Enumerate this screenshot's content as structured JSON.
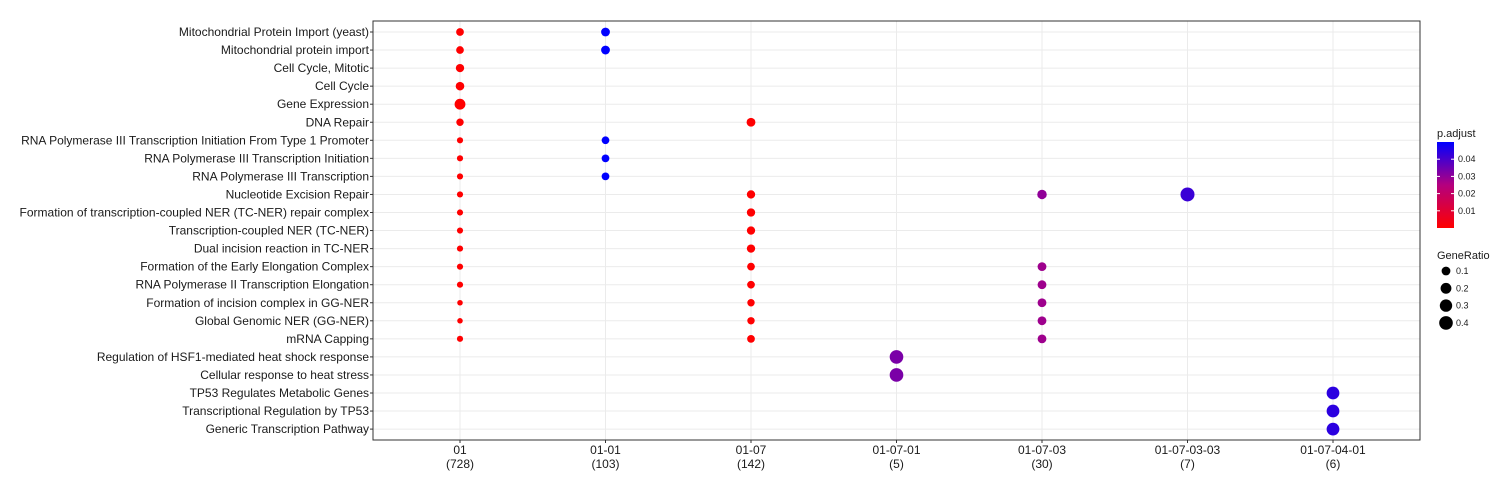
{
  "chart_data": {
    "type": "scatter",
    "title": "",
    "xlabel": "",
    "ylabel": "",
    "grid": true,
    "legend_placement": "right",
    "x_categories": [
      {
        "label": "01",
        "count": "(728)"
      },
      {
        "label": "01-01",
        "count": "(103)"
      },
      {
        "label": "01-07",
        "count": "(142)"
      },
      {
        "label": "01-07-01",
        "count": "(5)"
      },
      {
        "label": "01-07-03",
        "count": "(30)"
      },
      {
        "label": "01-07-03-03",
        "count": "(7)"
      },
      {
        "label": "01-07-04-01",
        "count": "(6)"
      }
    ],
    "y_categories": [
      "Mitochondrial Protein Import (yeast)",
      "Mitochondrial protein import",
      "Cell Cycle, Mitotic",
      "Cell Cycle",
      "Gene Expression",
      "DNA Repair",
      "RNA Polymerase III Transcription Initiation From Type 1 Promoter",
      "RNA Polymerase III Transcription Initiation",
      "RNA Polymerase III Transcription",
      "Nucleotide Excision Repair",
      "Formation of transcription-coupled NER (TC-NER) repair complex",
      "Transcription-coupled NER (TC-NER)",
      "Dual incision reaction in TC-NER",
      "Formation of the Early Elongation Complex",
      "RNA Polymerase II Transcription Elongation",
      "Formation of incision complex in GG-NER",
      "Global Genomic NER (GG-NER)",
      "mRNA Capping",
      "Regulation of HSF1-mediated heat shock response",
      "Cellular response to heat stress",
      "TP53 Regulates Metabolic Genes",
      "Transcriptional Regulation by TP53",
      "Generic Transcription Pathway"
    ],
    "points": [
      {
        "x": "01",
        "y": "Mitochondrial Protein Import (yeast)",
        "gene_ratio": 0.06,
        "p_adjust": 0.0001
      },
      {
        "x": "01",
        "y": "Mitochondrial protein import",
        "gene_ratio": 0.06,
        "p_adjust": 0.0001
      },
      {
        "x": "01",
        "y": "Cell Cycle, Mitotic",
        "gene_ratio": 0.08,
        "p_adjust": 0.0001
      },
      {
        "x": "01",
        "y": "Cell Cycle",
        "gene_ratio": 0.09,
        "p_adjust": 0.0001
      },
      {
        "x": "01",
        "y": "Gene Expression",
        "gene_ratio": 0.2,
        "p_adjust": 0.0001
      },
      {
        "x": "01",
        "y": "DNA Repair",
        "gene_ratio": 0.05,
        "p_adjust": 0.0001
      },
      {
        "x": "01",
        "y": "RNA Polymerase III Transcription Initiation From Type 1 Promoter",
        "gene_ratio": 0.02,
        "p_adjust": 0.0001
      },
      {
        "x": "01",
        "y": "RNA Polymerase III Transcription Initiation",
        "gene_ratio": 0.02,
        "p_adjust": 0.0001
      },
      {
        "x": "01",
        "y": "RNA Polymerase III Transcription",
        "gene_ratio": 0.02,
        "p_adjust": 0.0001
      },
      {
        "x": "01",
        "y": "Nucleotide Excision Repair",
        "gene_ratio": 0.02,
        "p_adjust": 0.0001
      },
      {
        "x": "01",
        "y": "Formation of transcription-coupled NER (TC-NER) repair complex",
        "gene_ratio": 0.02,
        "p_adjust": 0.0001
      },
      {
        "x": "01",
        "y": "Transcription-coupled NER (TC-NER)",
        "gene_ratio": 0.02,
        "p_adjust": 0.0001
      },
      {
        "x": "01",
        "y": "Dual incision reaction in TC-NER",
        "gene_ratio": 0.02,
        "p_adjust": 0.0001
      },
      {
        "x": "01",
        "y": "Formation of the Early Elongation Complex",
        "gene_ratio": 0.02,
        "p_adjust": 0.0001
      },
      {
        "x": "01",
        "y": "RNA Polymerase II Transcription Elongation",
        "gene_ratio": 0.02,
        "p_adjust": 0.0001
      },
      {
        "x": "01",
        "y": "Formation of incision complex in GG-NER",
        "gene_ratio": 0.01,
        "p_adjust": 0.0001
      },
      {
        "x": "01",
        "y": "Global Genomic NER (GG-NER)",
        "gene_ratio": 0.01,
        "p_adjust": 0.0001
      },
      {
        "x": "01",
        "y": "mRNA Capping",
        "gene_ratio": 0.02,
        "p_adjust": 0.0001
      },
      {
        "x": "01-01",
        "y": "Mitochondrial Protein Import (yeast)",
        "gene_ratio": 0.1,
        "p_adjust": 0.05
      },
      {
        "x": "01-01",
        "y": "Mitochondrial protein import",
        "gene_ratio": 0.1,
        "p_adjust": 0.05
      },
      {
        "x": "01-01",
        "y": "RNA Polymerase III Transcription Initiation From Type 1 Promoter",
        "gene_ratio": 0.06,
        "p_adjust": 0.05
      },
      {
        "x": "01-01",
        "y": "RNA Polymerase III Transcription Initiation",
        "gene_ratio": 0.06,
        "p_adjust": 0.05
      },
      {
        "x": "01-01",
        "y": "RNA Polymerase III Transcription",
        "gene_ratio": 0.06,
        "p_adjust": 0.05
      },
      {
        "x": "01-07",
        "y": "DNA Repair",
        "gene_ratio": 0.1,
        "p_adjust": 0.0001
      },
      {
        "x": "01-07",
        "y": "Nucleotide Excision Repair",
        "gene_ratio": 0.08,
        "p_adjust": 0.0001
      },
      {
        "x": "01-07",
        "y": "Formation of transcription-coupled NER (TC-NER) repair complex",
        "gene_ratio": 0.08,
        "p_adjust": 0.0001
      },
      {
        "x": "01-07",
        "y": "Transcription-coupled NER (TC-NER)",
        "gene_ratio": 0.08,
        "p_adjust": 0.0001
      },
      {
        "x": "01-07",
        "y": "Dual incision reaction in TC-NER",
        "gene_ratio": 0.08,
        "p_adjust": 0.0001
      },
      {
        "x": "01-07",
        "y": "Formation of the Early Elongation Complex",
        "gene_ratio": 0.06,
        "p_adjust": 0.0001
      },
      {
        "x": "01-07",
        "y": "RNA Polymerase II Transcription Elongation",
        "gene_ratio": 0.06,
        "p_adjust": 0.0001
      },
      {
        "x": "01-07",
        "y": "Formation of incision complex in GG-NER",
        "gene_ratio": 0.05,
        "p_adjust": 0.0001
      },
      {
        "x": "01-07",
        "y": "Global Genomic NER (GG-NER)",
        "gene_ratio": 0.05,
        "p_adjust": 0.0001
      },
      {
        "x": "01-07",
        "y": "mRNA Capping",
        "gene_ratio": 0.06,
        "p_adjust": 0.0001
      },
      {
        "x": "01-07-01",
        "y": "Regulation of HSF1-mediated heat shock response",
        "gene_ratio": 0.4,
        "p_adjust": 0.033
      },
      {
        "x": "01-07-01",
        "y": "Cellular response to heat stress",
        "gene_ratio": 0.4,
        "p_adjust": 0.033
      },
      {
        "x": "01-07-03",
        "y": "Nucleotide Excision Repair",
        "gene_ratio": 0.13,
        "p_adjust": 0.03
      },
      {
        "x": "01-07-03",
        "y": "Formation of the Early Elongation Complex",
        "gene_ratio": 0.1,
        "p_adjust": 0.028
      },
      {
        "x": "01-07-03",
        "y": "RNA Polymerase II Transcription Elongation",
        "gene_ratio": 0.1,
        "p_adjust": 0.028
      },
      {
        "x": "01-07-03",
        "y": "Formation of incision complex in GG-NER",
        "gene_ratio": 0.1,
        "p_adjust": 0.028
      },
      {
        "x": "01-07-03",
        "y": "Global Genomic NER (GG-NER)",
        "gene_ratio": 0.1,
        "p_adjust": 0.028
      },
      {
        "x": "01-07-03",
        "y": "mRNA Capping",
        "gene_ratio": 0.1,
        "p_adjust": 0.028
      },
      {
        "x": "01-07-03-03",
        "y": "Nucleotide Excision Repair",
        "gene_ratio": 0.43,
        "p_adjust": 0.042
      },
      {
        "x": "01-07-04-01",
        "y": "TP53 Regulates Metabolic Genes",
        "gene_ratio": 0.33,
        "p_adjust": 0.044
      },
      {
        "x": "01-07-04-01",
        "y": "Transcriptional Regulation by TP53",
        "gene_ratio": 0.33,
        "p_adjust": 0.044
      },
      {
        "x": "01-07-04-01",
        "y": "Generic Transcription Pathway",
        "gene_ratio": 0.33,
        "p_adjust": 0.044
      }
    ],
    "legend_color": {
      "title": "p.adjust",
      "ticks": [
        "0.01",
        "0.02",
        "0.03",
        "0.04"
      ],
      "tick_values": [
        0.01,
        0.02,
        0.03,
        0.04
      ],
      "range": [
        0.0,
        0.05
      ],
      "low_color": "#ff0000",
      "high_color": "#0000ff"
    },
    "legend_size": {
      "title": "GeneRatio",
      "ticks": [
        "0.1",
        "0.2",
        "0.3",
        "0.4"
      ],
      "tick_values": [
        0.1,
        0.2,
        0.3,
        0.4
      ]
    }
  }
}
